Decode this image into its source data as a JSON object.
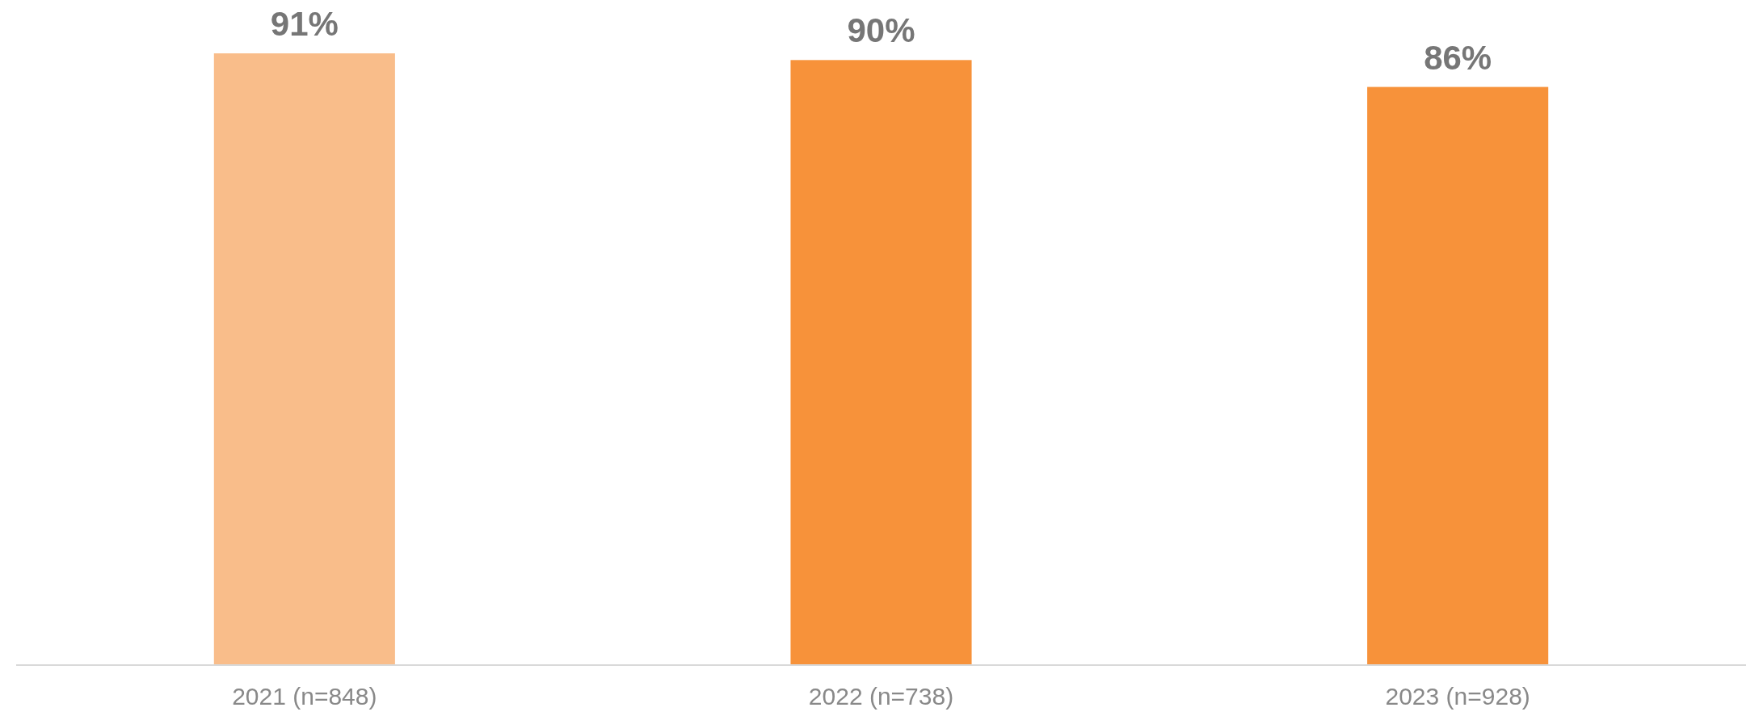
{
  "chart_data": {
    "type": "bar",
    "categories": [
      "2021 (n=848)",
      "2022 (n=738)",
      "2023 (n=928)"
    ],
    "values": [
      91,
      90,
      86
    ],
    "colors": [
      "#f9bd8a",
      "#f7923a",
      "#f7923a"
    ],
    "value_labels": [
      "91%",
      "90%",
      "86%"
    ]
  }
}
